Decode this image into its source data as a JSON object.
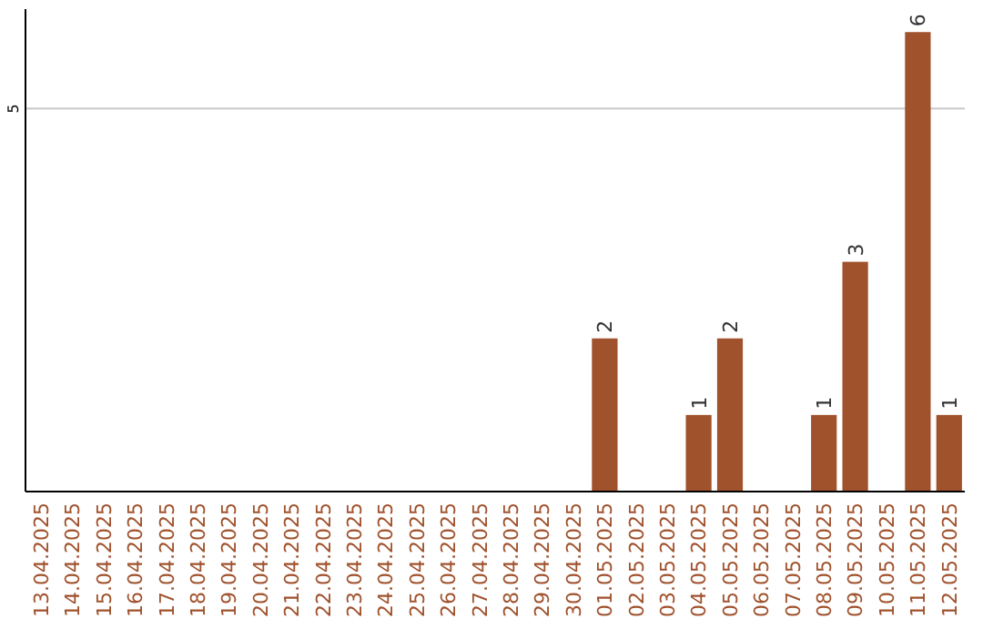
{
  "chart_data": {
    "type": "bar",
    "categories": [
      "13.04.2025",
      "14.04.2025",
      "15.04.2025",
      "16.04.2025",
      "17.04.2025",
      "18.04.2025",
      "19.04.2025",
      "20.04.2025",
      "21.04.2025",
      "22.04.2025",
      "23.04.2025",
      "24.04.2025",
      "25.04.2025",
      "26.04.2025",
      "27.04.2025",
      "28.04.2025",
      "29.04.2025",
      "30.04.2025",
      "01.05.2025",
      "02.05.2025",
      "03.05.2025",
      "04.05.2025",
      "05.05.2025",
      "06.05.2025",
      "07.05.2025",
      "08.05.2025",
      "09.05.2025",
      "10.05.2025",
      "11.05.2025",
      "12.05.2025"
    ],
    "values": [
      null,
      null,
      null,
      null,
      null,
      null,
      null,
      null,
      null,
      null,
      null,
      null,
      null,
      null,
      null,
      null,
      null,
      null,
      2,
      null,
      null,
      1,
      2,
      null,
      null,
      1,
      3,
      null,
      6,
      1
    ],
    "data_labels": true,
    "color": "#a0522d",
    "ylim": [
      0,
      6.3
    ],
    "ref_lines": [
      {
        "axis": "y",
        "value": 5,
        "label": "5",
        "color": "#c8c8c8"
      }
    ]
  }
}
